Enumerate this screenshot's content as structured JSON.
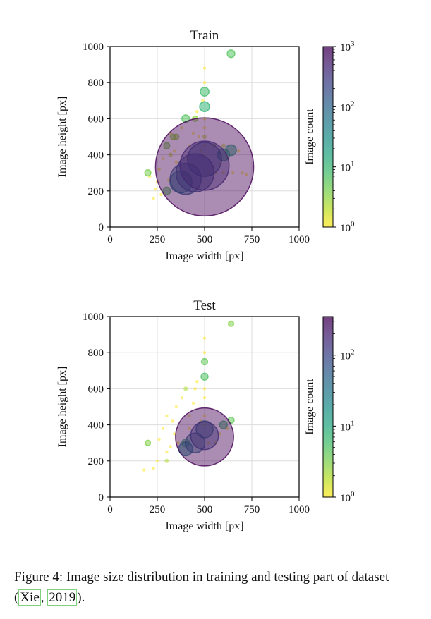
{
  "chart_data": [
    {
      "type": "scatter",
      "title": "Train",
      "xlabel": "Image width [px]",
      "ylabel": "Image height [px]",
      "xlim": [
        0,
        1000
      ],
      "ylim": [
        0,
        1000
      ],
      "xticks": [
        "0",
        "250",
        "500",
        "750",
        "1000"
      ],
      "yticks": [
        "0",
        "200",
        "400",
        "600",
        "800",
        "1000"
      ],
      "grid": true,
      "colorbar": {
        "label": "Image count",
        "scale": "log",
        "range": [
          1,
          1000
        ],
        "ticks": [
          {
            "base": "10",
            "exp": "0"
          },
          {
            "base": "10",
            "exp": "1"
          },
          {
            "base": "10",
            "exp": "2"
          },
          {
            "base": "10",
            "exp": "3"
          }
        ],
        "colormap": "viridis_r"
      },
      "points": [
        {
          "x": 500,
          "y": 333,
          "count": 1000
        },
        {
          "x": 500,
          "y": 340,
          "count": 250
        },
        {
          "x": 450,
          "y": 300,
          "count": 150
        },
        {
          "x": 400,
          "y": 267,
          "count": 100
        },
        {
          "x": 500,
          "y": 375,
          "count": 120
        },
        {
          "x": 375,
          "y": 250,
          "count": 50
        },
        {
          "x": 640,
          "y": 426,
          "count": 12
        },
        {
          "x": 600,
          "y": 400,
          "count": 15
        },
        {
          "x": 500,
          "y": 750,
          "count": 8
        },
        {
          "x": 500,
          "y": 667,
          "count": 10
        },
        {
          "x": 640,
          "y": 960,
          "count": 6
        },
        {
          "x": 200,
          "y": 300,
          "count": 4
        },
        {
          "x": 300,
          "y": 200,
          "count": 6
        },
        {
          "x": 400,
          "y": 600,
          "count": 6
        },
        {
          "x": 300,
          "y": 450,
          "count": 4
        },
        {
          "x": 350,
          "y": 500,
          "count": 3
        },
        {
          "x": 333,
          "y": 500,
          "count": 3
        },
        {
          "x": 450,
          "y": 600,
          "count": 3
        },
        {
          "x": 320,
          "y": 400,
          "count": 2
        },
        {
          "x": 500,
          "y": 500,
          "count": 2
        },
        {
          "x": 550,
          "y": 450,
          "count": 2
        },
        {
          "x": 600,
          "y": 450,
          "count": 2
        },
        {
          "x": 500,
          "y": 450,
          "count": 1
        },
        {
          "x": 500,
          "y": 550,
          "count": 1
        },
        {
          "x": 500,
          "y": 600,
          "count": 1
        },
        {
          "x": 500,
          "y": 800,
          "count": 1
        },
        {
          "x": 500,
          "y": 880,
          "count": 1
        },
        {
          "x": 500,
          "y": 400,
          "count": 1
        },
        {
          "x": 250,
          "y": 250,
          "count": 1
        },
        {
          "x": 270,
          "y": 180,
          "count": 1
        },
        {
          "x": 230,
          "y": 160,
          "count": 1
        },
        {
          "x": 260,
          "y": 320,
          "count": 1
        },
        {
          "x": 280,
          "y": 380,
          "count": 1
        },
        {
          "x": 340,
          "y": 420,
          "count": 1
        },
        {
          "x": 360,
          "y": 300,
          "count": 1
        },
        {
          "x": 380,
          "y": 550,
          "count": 1
        },
        {
          "x": 420,
          "y": 450,
          "count": 1
        },
        {
          "x": 430,
          "y": 350,
          "count": 1
        },
        {
          "x": 440,
          "y": 520,
          "count": 1
        },
        {
          "x": 460,
          "y": 640,
          "count": 1
        },
        {
          "x": 470,
          "y": 500,
          "count": 1
        },
        {
          "x": 520,
          "y": 300,
          "count": 1
        },
        {
          "x": 560,
          "y": 300,
          "count": 1
        },
        {
          "x": 600,
          "y": 300,
          "count": 1
        },
        {
          "x": 650,
          "y": 300,
          "count": 1
        },
        {
          "x": 700,
          "y": 300,
          "count": 1
        },
        {
          "x": 720,
          "y": 290,
          "count": 1
        },
        {
          "x": 680,
          "y": 420,
          "count": 1
        },
        {
          "x": 620,
          "y": 380,
          "count": 1
        },
        {
          "x": 580,
          "y": 350,
          "count": 1
        },
        {
          "x": 210,
          "y": 280,
          "count": 1
        },
        {
          "x": 240,
          "y": 210,
          "count": 1
        },
        {
          "x": 310,
          "y": 260,
          "count": 1
        },
        {
          "x": 320,
          "y": 520,
          "count": 1
        },
        {
          "x": 350,
          "y": 360,
          "count": 1
        },
        {
          "x": 410,
          "y": 380,
          "count": 1
        },
        {
          "x": 480,
          "y": 420,
          "count": 1
        },
        {
          "x": 490,
          "y": 700,
          "count": 1
        },
        {
          "x": 540,
          "y": 330,
          "count": 1
        },
        {
          "x": 610,
          "y": 420,
          "count": 1
        }
      ]
    },
    {
      "type": "scatter",
      "title": "Test",
      "xlabel": "Image width [px]",
      "ylabel": "Image height [px]",
      "xlim": [
        0,
        1000
      ],
      "ylim": [
        0,
        1000
      ],
      "xticks": [
        "0",
        "250",
        "500",
        "750",
        "1000"
      ],
      "yticks": [
        "0",
        "200",
        "400",
        "600",
        "800",
        "1000"
      ],
      "grid": true,
      "colorbar": {
        "label": "Image count",
        "scale": "log",
        "range": [
          1,
          350
        ],
        "ticks": [
          {
            "base": "10",
            "exp": "0"
          },
          {
            "base": "10",
            "exp": "1"
          },
          {
            "base": "10",
            "exp": "2"
          }
        ],
        "colormap": "viridis_r"
      },
      "points": [
        {
          "x": 500,
          "y": 333,
          "count": 350
        },
        {
          "x": 500,
          "y": 340,
          "count": 80
        },
        {
          "x": 450,
          "y": 300,
          "count": 40
        },
        {
          "x": 400,
          "y": 267,
          "count": 20
        },
        {
          "x": 500,
          "y": 375,
          "count": 30
        },
        {
          "x": 400,
          "y": 300,
          "count": 6
        },
        {
          "x": 600,
          "y": 400,
          "count": 6
        },
        {
          "x": 640,
          "y": 426,
          "count": 4
        },
        {
          "x": 500,
          "y": 750,
          "count": 4
        },
        {
          "x": 500,
          "y": 667,
          "count": 5
        },
        {
          "x": 640,
          "y": 960,
          "count": 3
        },
        {
          "x": 200,
          "y": 300,
          "count": 3
        },
        {
          "x": 300,
          "y": 200,
          "count": 2
        },
        {
          "x": 400,
          "y": 600,
          "count": 2
        },
        {
          "x": 300,
          "y": 450,
          "count": 1
        },
        {
          "x": 350,
          "y": 500,
          "count": 1
        },
        {
          "x": 330,
          "y": 420,
          "count": 1
        },
        {
          "x": 450,
          "y": 600,
          "count": 1
        },
        {
          "x": 500,
          "y": 450,
          "count": 1
        },
        {
          "x": 500,
          "y": 550,
          "count": 1
        },
        {
          "x": 500,
          "y": 600,
          "count": 1
        },
        {
          "x": 500,
          "y": 800,
          "count": 1
        },
        {
          "x": 500,
          "y": 880,
          "count": 1
        },
        {
          "x": 500,
          "y": 400,
          "count": 1
        },
        {
          "x": 250,
          "y": 200,
          "count": 1
        },
        {
          "x": 180,
          "y": 150,
          "count": 1
        },
        {
          "x": 230,
          "y": 160,
          "count": 1
        },
        {
          "x": 260,
          "y": 320,
          "count": 1
        },
        {
          "x": 280,
          "y": 380,
          "count": 1
        },
        {
          "x": 340,
          "y": 350,
          "count": 1
        },
        {
          "x": 360,
          "y": 300,
          "count": 1
        },
        {
          "x": 380,
          "y": 550,
          "count": 1
        },
        {
          "x": 420,
          "y": 450,
          "count": 1
        },
        {
          "x": 440,
          "y": 520,
          "count": 1
        },
        {
          "x": 460,
          "y": 640,
          "count": 1
        },
        {
          "x": 520,
          "y": 300,
          "count": 1
        },
        {
          "x": 560,
          "y": 300,
          "count": 1
        },
        {
          "x": 580,
          "y": 350,
          "count": 1
        },
        {
          "x": 620,
          "y": 380,
          "count": 1
        },
        {
          "x": 300,
          "y": 250,
          "count": 1
        },
        {
          "x": 320,
          "y": 280,
          "count": 1
        },
        {
          "x": 420,
          "y": 380,
          "count": 1
        },
        {
          "x": 480,
          "y": 420,
          "count": 1
        }
      ]
    }
  ],
  "caption": {
    "prefix": "Figure 4: Image size distribution in training and testing part of dataset (",
    "author": "Xie",
    "separator": ", ",
    "year": "2019",
    "suffix": ")."
  }
}
